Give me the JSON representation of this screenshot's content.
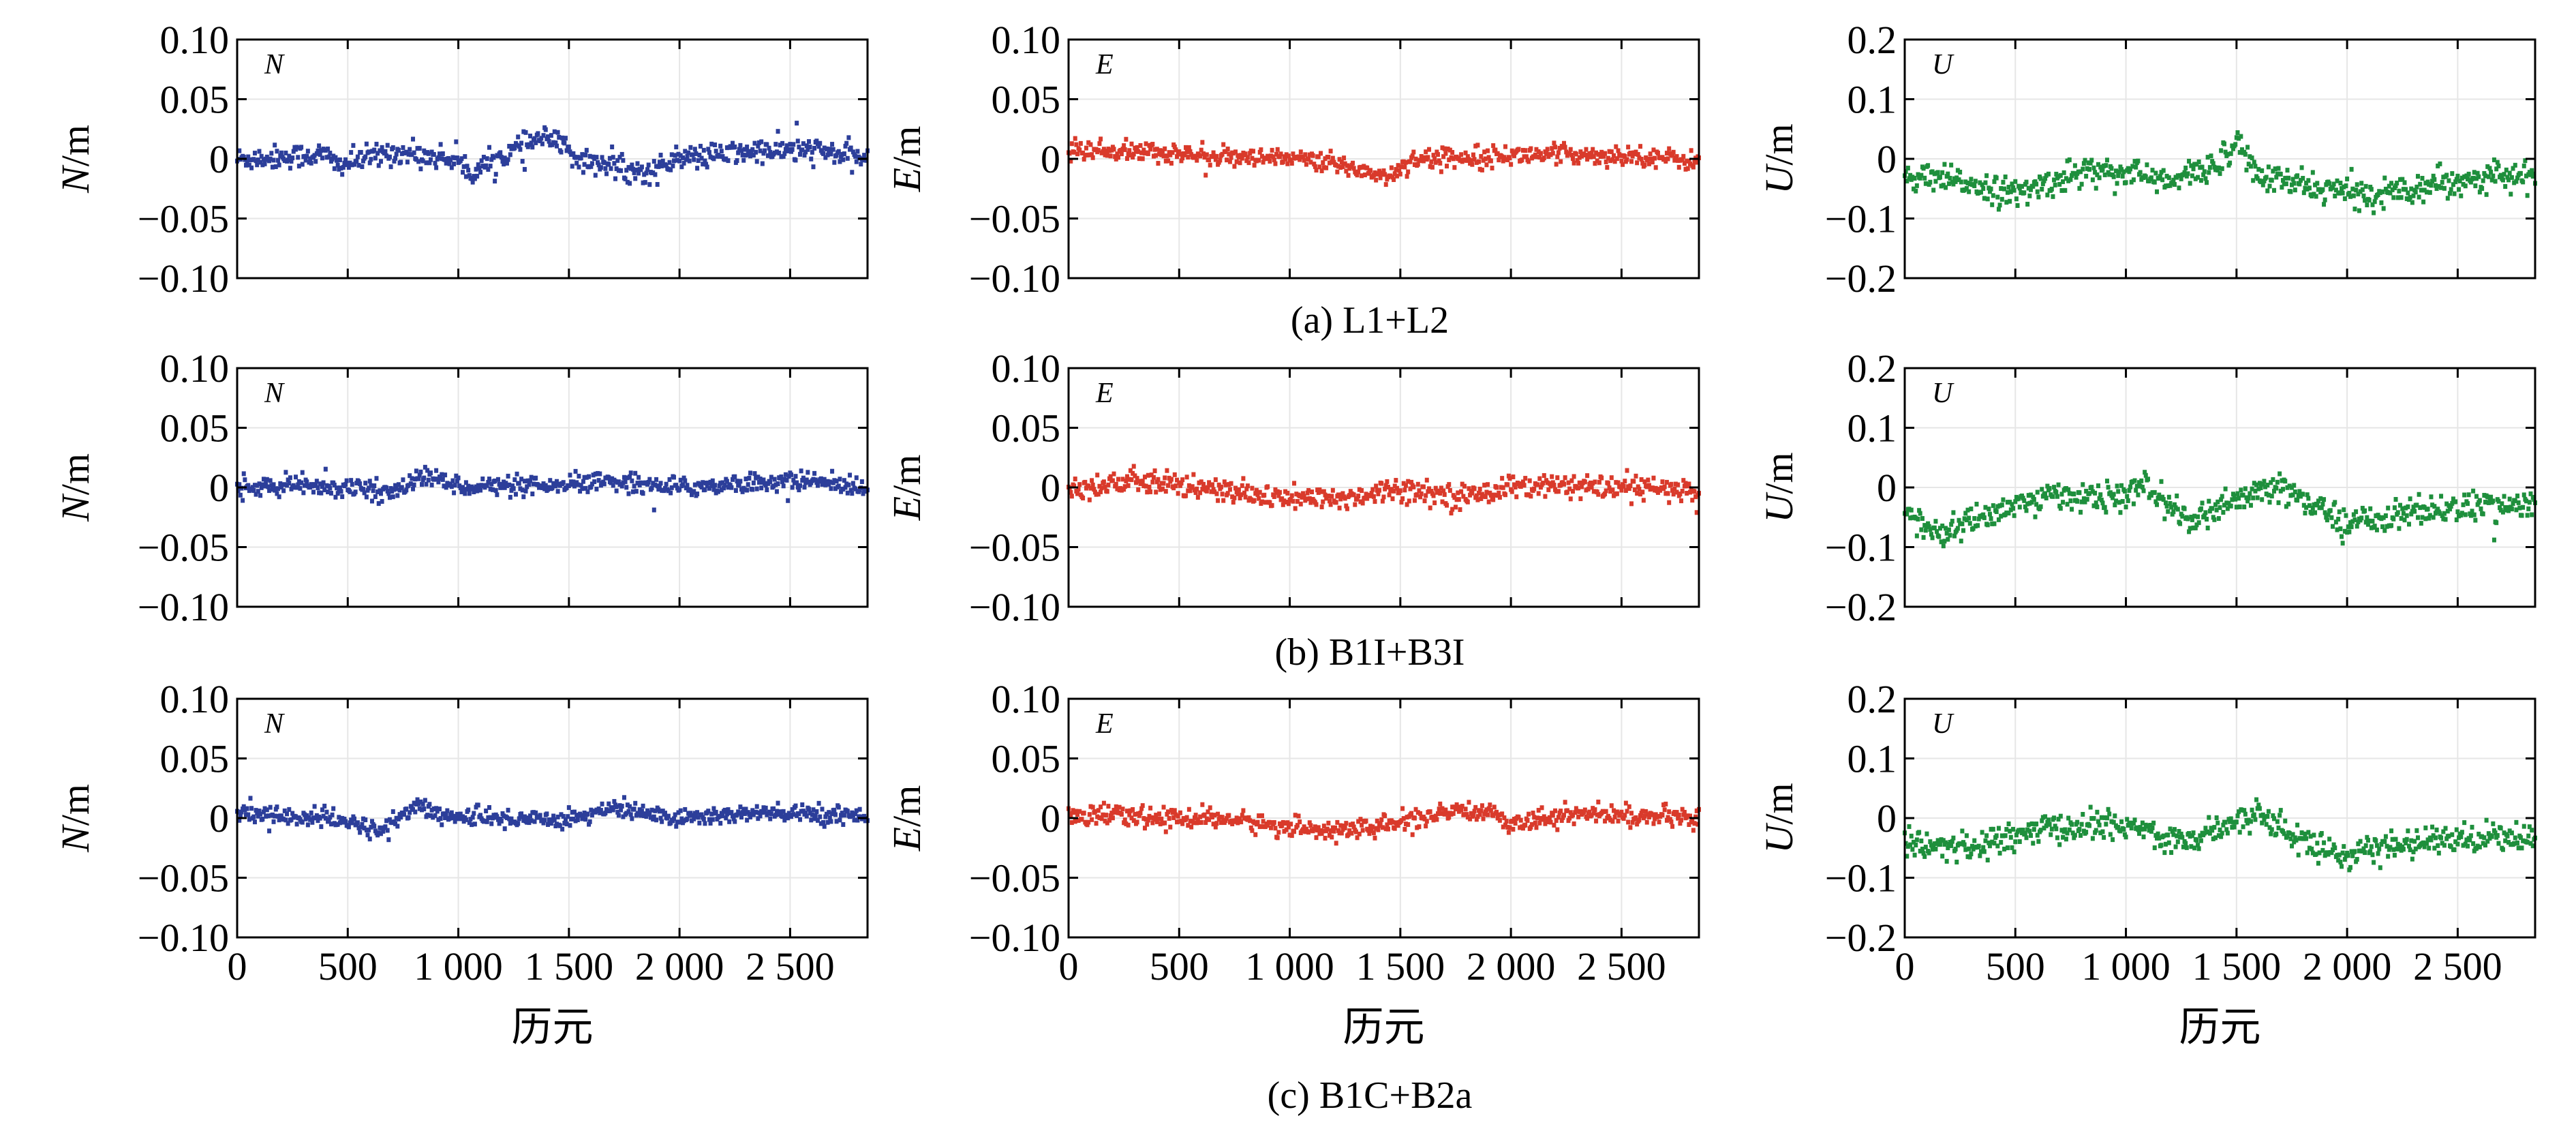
{
  "colors": {
    "N": "#2c3e9a",
    "E": "#d93a2b",
    "U": "#1e8f3c"
  },
  "chart_data": [
    {
      "type": "scatter",
      "row": 0,
      "col": 0,
      "tag": "N",
      "ylabel_italic": "N",
      "ylabel_unit": "/m",
      "ylim": [
        -0.1,
        0.1
      ],
      "yticks": [
        "0.10",
        "0.05",
        "0",
        "−0.05",
        "−0.10"
      ],
      "xlim": [
        0,
        2850
      ],
      "show_xticklabels": false,
      "noise": 0.005,
      "anchors": [
        [
          0,
          0
        ],
        [
          400,
          0.004
        ],
        [
          450,
          -0.005
        ],
        [
          700,
          0.006
        ],
        [
          1000,
          0.0
        ],
        [
          1050,
          -0.012
        ],
        [
          1300,
          0.012
        ],
        [
          1400,
          0.018
        ],
        [
          1550,
          0.0
        ],
        [
          1850,
          -0.012
        ],
        [
          2000,
          0.0
        ],
        [
          2300,
          0.006
        ],
        [
          2600,
          0.008
        ],
        [
          2850,
          0.0
        ]
      ],
      "series_color": "N"
    },
    {
      "type": "scatter",
      "row": 0,
      "col": 1,
      "tag": "E",
      "ylabel_italic": "E",
      "ylabel_unit": "/m",
      "ylim": [
        -0.1,
        0.1
      ],
      "yticks": [
        "0.10",
        "0.05",
        "0",
        "−0.05",
        "−0.10"
      ],
      "xlim": [
        0,
        2850
      ],
      "show_xticklabels": false,
      "noise": 0.004,
      "anchors": [
        [
          0,
          0.008
        ],
        [
          400,
          0.006
        ],
        [
          800,
          0.0
        ],
        [
          1100,
          0.0
        ],
        [
          1300,
          -0.008
        ],
        [
          1450,
          -0.015
        ],
        [
          1550,
          0.0
        ],
        [
          1900,
          0.003
        ],
        [
          2300,
          0.004
        ],
        [
          2600,
          0.003
        ],
        [
          2850,
          -0.002
        ]
      ],
      "series_color": "E"
    },
    {
      "type": "scatter",
      "row": 0,
      "col": 2,
      "tag": "U",
      "ylabel_italic": "U",
      "ylabel_unit": "/m",
      "ylim": [
        -0.2,
        0.2
      ],
      "yticks": [
        "0.2",
        "0.1",
        "0",
        "−0.1",
        "−0.2"
      ],
      "xlim": [
        0,
        2850
      ],
      "show_xticklabels": false,
      "noise": 0.012,
      "anchors": [
        [
          0,
          -0.03
        ],
        [
          300,
          -0.04
        ],
        [
          500,
          -0.06
        ],
        [
          800,
          -0.02
        ],
        [
          1000,
          -0.02
        ],
        [
          1200,
          -0.04
        ],
        [
          1400,
          -0.01
        ],
        [
          1500,
          0.03
        ],
        [
          1600,
          -0.03
        ],
        [
          1900,
          -0.05
        ],
        [
          2100,
          -0.06
        ],
        [
          2400,
          -0.04
        ],
        [
          2600,
          -0.03
        ],
        [
          2850,
          -0.03
        ]
      ],
      "series_color": "U"
    },
    {
      "type": "scatter",
      "row": 1,
      "col": 0,
      "tag": "N",
      "ylabel_italic": "N",
      "ylabel_unit": "/m",
      "ylim": [
        -0.1,
        0.1
      ],
      "yticks": [
        "0.10",
        "0.05",
        "0",
        "−0.05",
        "−0.10"
      ],
      "xlim": [
        0,
        2850
      ],
      "show_xticklabels": false,
      "noise": 0.004,
      "anchors": [
        [
          0,
          0.0
        ],
        [
          400,
          0.002
        ],
        [
          700,
          -0.004
        ],
        [
          850,
          0.01
        ],
        [
          1000,
          0.002
        ],
        [
          1400,
          0.0
        ],
        [
          1700,
          0.006
        ],
        [
          2000,
          0.0
        ],
        [
          2300,
          0.004
        ],
        [
          2600,
          0.006
        ],
        [
          2850,
          0.0
        ]
      ],
      "series_color": "N"
    },
    {
      "type": "scatter",
      "row": 1,
      "col": 1,
      "tag": "E",
      "ylabel_italic": "E",
      "ylabel_unit": "/m",
      "ylim": [
        -0.1,
        0.1
      ],
      "yticks": [
        "0.10",
        "0.05",
        "0",
        "−0.05",
        "−0.10"
      ],
      "xlim": [
        0,
        2850
      ],
      "show_xticklabels": false,
      "noise": 0.005,
      "anchors": [
        [
          0,
          0.0
        ],
        [
          300,
          0.005
        ],
        [
          600,
          0.0
        ],
        [
          900,
          -0.008
        ],
        [
          1200,
          -0.01
        ],
        [
          1500,
          0.0
        ],
        [
          1800,
          -0.008
        ],
        [
          2000,
          0.002
        ],
        [
          2300,
          0.0
        ],
        [
          2600,
          0.0
        ],
        [
          2850,
          -0.004
        ]
      ],
      "series_color": "E"
    },
    {
      "type": "scatter",
      "row": 1,
      "col": 2,
      "tag": "U",
      "ylabel_italic": "U",
      "ylabel_unit": "/m",
      "ylim": [
        -0.2,
        0.2
      ],
      "yticks": [
        "0.2",
        "0.1",
        "0",
        "−0.1",
        "−0.2"
      ],
      "xlim": [
        0,
        2850
      ],
      "show_xticklabels": false,
      "noise": 0.012,
      "anchors": [
        [
          0,
          -0.04
        ],
        [
          150,
          -0.08
        ],
        [
          400,
          -0.04
        ],
        [
          700,
          -0.01
        ],
        [
          900,
          -0.02
        ],
        [
          1100,
          0.0
        ],
        [
          1300,
          -0.06
        ],
        [
          1500,
          -0.02
        ],
        [
          1700,
          0.0
        ],
        [
          1800,
          -0.02
        ],
        [
          2000,
          -0.06
        ],
        [
          2300,
          -0.04
        ],
        [
          2600,
          -0.03
        ],
        [
          2850,
          -0.03
        ]
      ],
      "series_color": "U"
    },
    {
      "type": "scatter",
      "row": 2,
      "col": 0,
      "tag": "N",
      "ylabel_italic": "N",
      "ylabel_unit": "/m",
      "ylim": [
        -0.1,
        0.1
      ],
      "yticks": [
        "0.10",
        "0.05",
        "0",
        "−0.05",
        "−0.10"
      ],
      "xlim": [
        0,
        2850
      ],
      "show_xticklabels": true,
      "xticks": [
        0,
        500,
        1000,
        1500,
        2000,
        2500
      ],
      "xticklabels": [
        "0",
        "500",
        "1 000",
        "1 500",
        "2 000",
        "2 500"
      ],
      "xlabel": "历元",
      "noise": 0.004,
      "anchors": [
        [
          0,
          0.004
        ],
        [
          400,
          0.0
        ],
        [
          650,
          -0.01
        ],
        [
          800,
          0.01
        ],
        [
          1000,
          0.0
        ],
        [
          1500,
          0.0
        ],
        [
          1700,
          0.008
        ],
        [
          2000,
          0.0
        ],
        [
          2300,
          0.004
        ],
        [
          2850,
          0.003
        ]
      ],
      "series_color": "N"
    },
    {
      "type": "scatter",
      "row": 2,
      "col": 1,
      "tag": "E",
      "ylabel_italic": "E",
      "ylabel_unit": "/m",
      "ylim": [
        -0.1,
        0.1
      ],
      "yticks": [
        "0.10",
        "0.05",
        "0",
        "−0.05",
        "−0.10"
      ],
      "xlim": [
        0,
        2850
      ],
      "show_xticklabels": true,
      "xticks": [
        0,
        500,
        1000,
        1500,
        2000,
        2500
      ],
      "xticklabels": [
        "0",
        "500",
        "1 000",
        "1 500",
        "2 000",
        "2 500"
      ],
      "xlabel": "历元",
      "noise": 0.004,
      "anchors": [
        [
          0,
          0.004
        ],
        [
          400,
          0.0
        ],
        [
          700,
          0.0
        ],
        [
          1000,
          -0.008
        ],
        [
          1300,
          -0.01
        ],
        [
          1600,
          0.0
        ],
        [
          1900,
          0.008
        ],
        [
          2000,
          -0.004
        ],
        [
          2300,
          0.004
        ],
        [
          2850,
          0.0
        ]
      ],
      "series_color": "E"
    },
    {
      "type": "scatter",
      "row": 2,
      "col": 2,
      "tag": "U",
      "ylabel_italic": "U",
      "ylabel_unit": "/m",
      "ylim": [
        -0.2,
        0.2
      ],
      "yticks": [
        "0.2",
        "0.1",
        "0",
        "−0.1",
        "−0.2"
      ],
      "xlim": [
        0,
        2850
      ],
      "show_xticklabels": true,
      "xticks": [
        0,
        500,
        1000,
        1500,
        2000,
        2500
      ],
      "xticklabels": [
        "0",
        "500",
        "1 000",
        "1 500",
        "2 000",
        "2 500"
      ],
      "xlabel": "历元",
      "noise": 0.012,
      "anchors": [
        [
          0,
          -0.04
        ],
        [
          300,
          -0.05
        ],
        [
          600,
          -0.02
        ],
        [
          900,
          -0.01
        ],
        [
          1100,
          -0.02
        ],
        [
          1300,
          -0.04
        ],
        [
          1500,
          0.0
        ],
        [
          1600,
          0.01
        ],
        [
          1800,
          -0.04
        ],
        [
          2000,
          -0.06
        ],
        [
          2300,
          -0.04
        ],
        [
          2600,
          -0.03
        ],
        [
          2850,
          -0.03
        ]
      ],
      "series_color": "U"
    }
  ],
  "captions": {
    "a": "(a) L1+L2",
    "b": "(b) B1I+B3I",
    "c": "(c) B1C+B2a"
  }
}
